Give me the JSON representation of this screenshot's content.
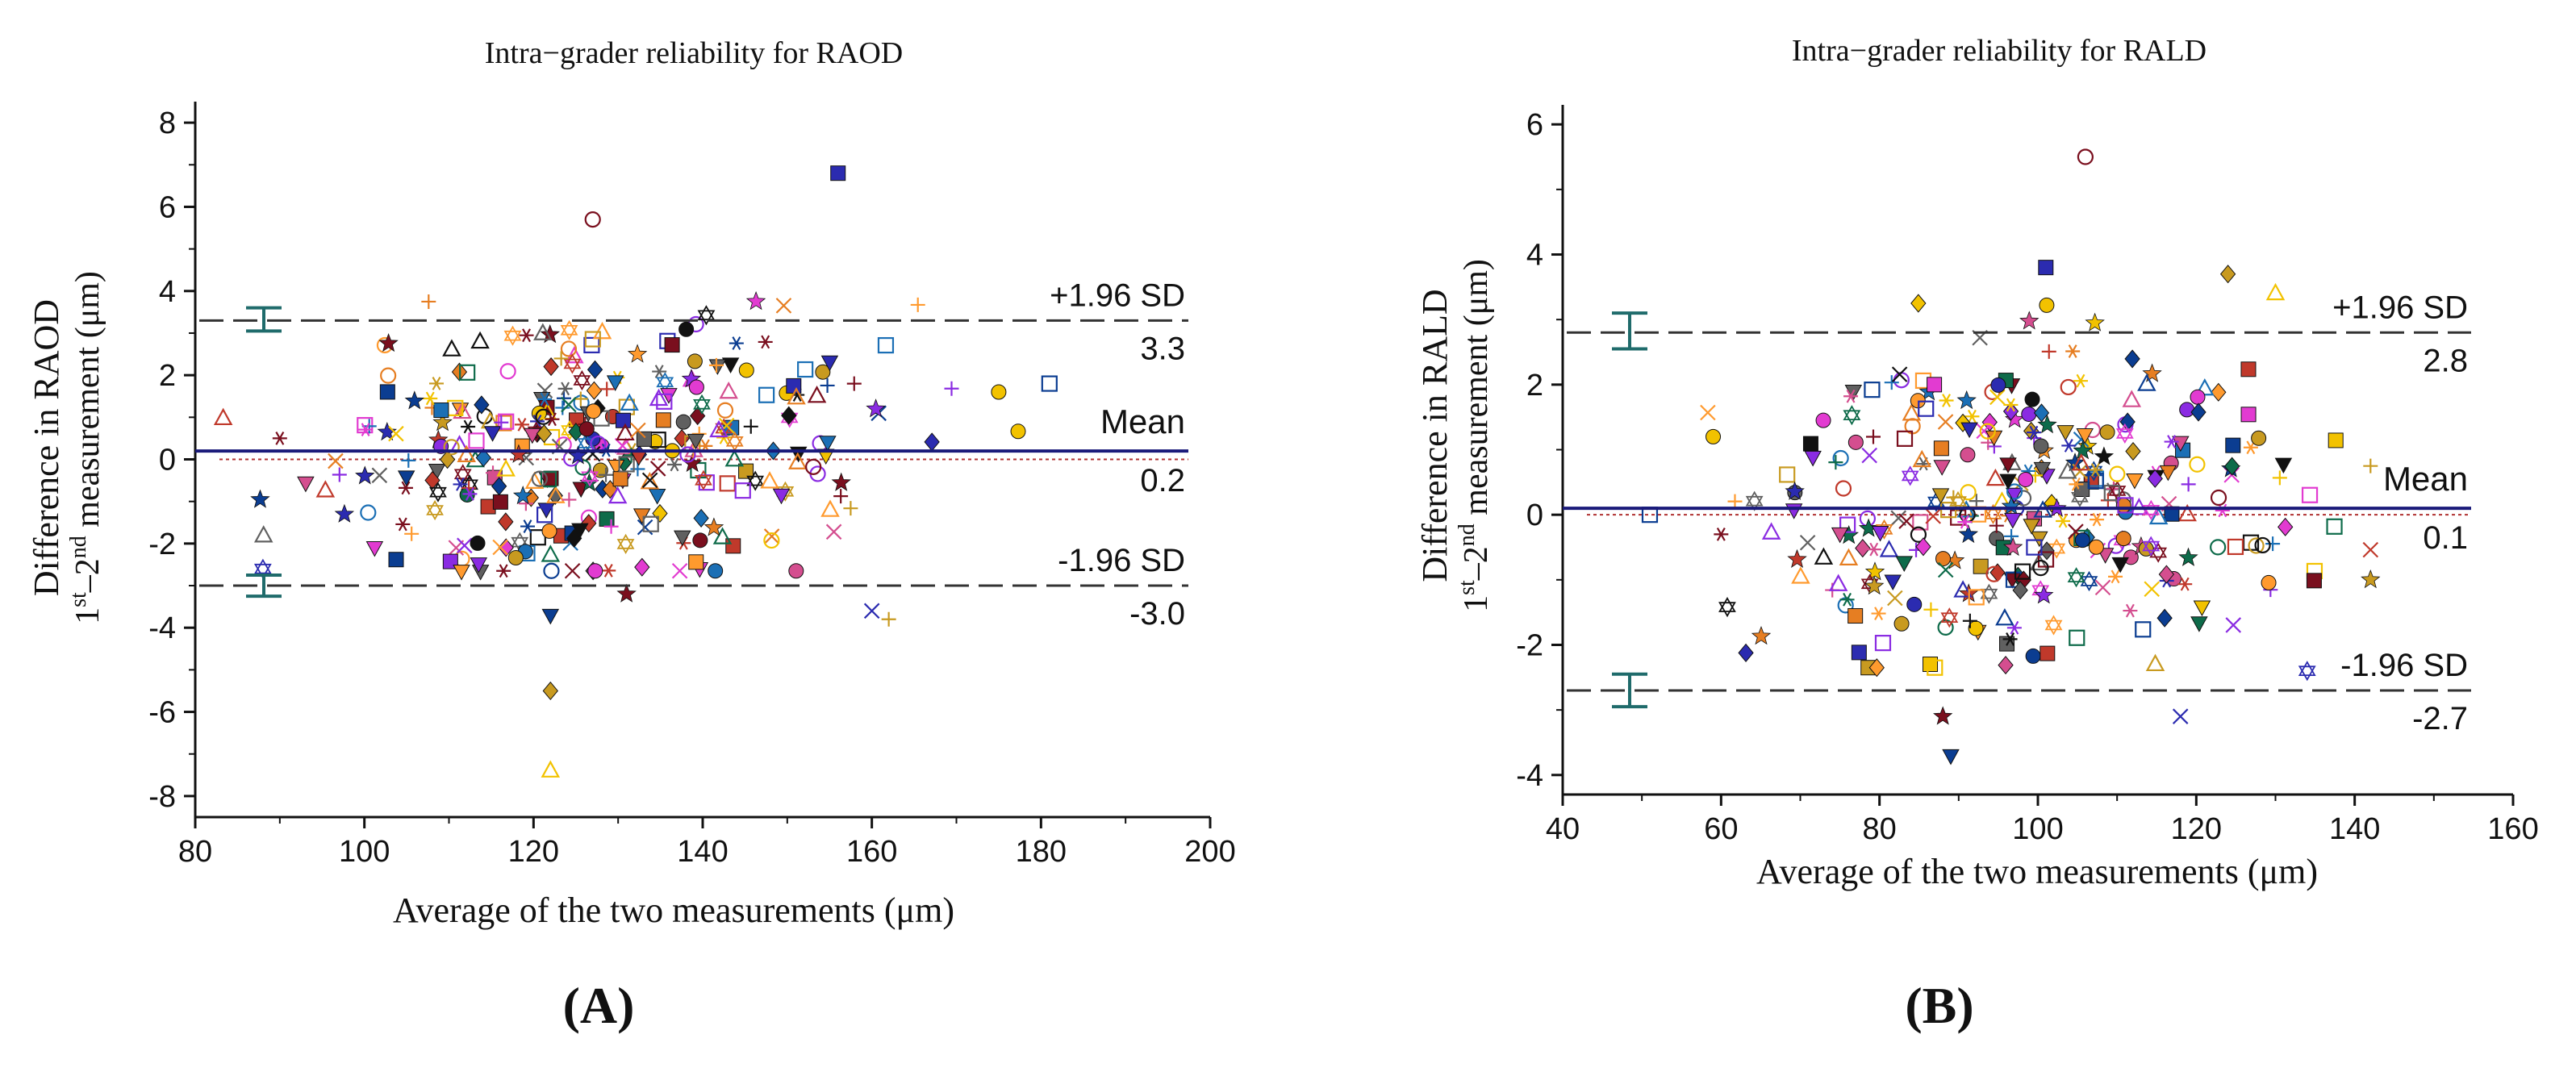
{
  "colors": {
    "axis": "#111111",
    "mean_line": "#1a1a7a",
    "limit_line": "#333333",
    "zero_line": "#b03030",
    "ci_bar": "#1f6b6b",
    "markers": [
      "#111111",
      "#7a0f1e",
      "#ff9a2e",
      "#e23bd1",
      "#2b2bb0",
      "#0e6b4a",
      "#d44e8f",
      "#c89a20",
      "#1b6fb5",
      "#8a2be2",
      "#f2c200",
      "#c0392b",
      "#606060",
      "#0b3d91",
      "#e67e22"
    ]
  },
  "marker_shapes": [
    "circle-open",
    "square-filled",
    "diamond-filled",
    "triangle-open",
    "triangle-down-filled",
    "star",
    "cross",
    "plus",
    "circle-filled",
    "square-open",
    "asterisk",
    "hexagram"
  ],
  "chart_data": [
    {
      "type": "scatter",
      "panel_label": "(A)",
      "title": "Intra−grader reliability for RAOD",
      "xlabel": "Average of the two measurements (μm)",
      "ylabel_line1": "Difference in RAOD",
      "ylabel_line2": "1st–2nd measurement (μm)",
      "xlim": [
        80,
        200
      ],
      "ylim": [
        -8.5,
        8.5
      ],
      "xticks": [
        80,
        100,
        120,
        140,
        160,
        180,
        200
      ],
      "yticks": [
        -8,
        -6,
        -4,
        -2,
        0,
        2,
        4,
        6,
        8
      ],
      "mean": 0.2,
      "upper_loa": 3.3,
      "lower_loa": -3.0,
      "mean_label": "Mean",
      "mean_value_label": "0.2",
      "upper_label": "+1.96 SD",
      "upper_value_label": "3.3",
      "lower_label": "-1.96 SD",
      "lower_value_label": "-3.0",
      "upper_ci": [
        3.05,
        3.6
      ],
      "lower_ci": [
        -3.25,
        -2.75
      ],
      "x_range_data": [
        82,
        182
      ],
      "n_points": 330,
      "seed": 7,
      "cluster_center": 128,
      "cluster_spread": 16,
      "y_spread": 1.5,
      "highlighted_points": [
        {
          "x": 127,
          "y": 5.7
        },
        {
          "x": 156,
          "y": 6.8
        },
        {
          "x": 122,
          "y": -5.5
        },
        {
          "x": 122,
          "y": -7.4
        },
        {
          "x": 122,
          "y": -3.7
        },
        {
          "x": 131,
          "y": -3.2
        },
        {
          "x": 160,
          "y": -3.6
        },
        {
          "x": 162,
          "y": -3.8
        },
        {
          "x": 175,
          "y": 1.6
        },
        {
          "x": 181,
          "y": 1.8
        },
        {
          "x": 90,
          "y": 0.5
        },
        {
          "x": 88,
          "y": -2.6
        }
      ]
    },
    {
      "type": "scatter",
      "panel_label": "(B)",
      "title": "Intra−grader reliability for RALD",
      "xlabel": "Average of the two measurements (μm)",
      "ylabel_line1": "Difference in RALD",
      "ylabel_line2": "1st–2nd measurement (μm)",
      "xlim": [
        40,
        160
      ],
      "ylim": [
        -4.3,
        6.3
      ],
      "xticks": [
        40,
        60,
        80,
        100,
        120,
        140,
        160
      ],
      "yticks": [
        -4,
        -2,
        0,
        2,
        4,
        6
      ],
      "mean": 0.1,
      "upper_loa": 2.8,
      "lower_loa": -2.7,
      "mean_label": "Mean",
      "mean_value_label": "0.1",
      "upper_label": "+1.96 SD",
      "upper_value_label": "2.8",
      "lower_label": "-1.96 SD",
      "lower_value_label": "-2.7",
      "upper_ci": [
        2.55,
        3.1
      ],
      "lower_ci": [
        -2.95,
        -2.45
      ],
      "x_range_data": [
        58,
        142
      ],
      "n_points": 330,
      "seed": 19,
      "cluster_center": 100,
      "cluster_spread": 16,
      "y_spread": 1.25,
      "highlighted_points": [
        {
          "x": 106,
          "y": 5.5
        },
        {
          "x": 101,
          "y": 3.8
        },
        {
          "x": 124,
          "y": 3.7
        },
        {
          "x": 130,
          "y": 3.4
        },
        {
          "x": 89,
          "y": -3.7
        },
        {
          "x": 88,
          "y": -3.1
        },
        {
          "x": 118,
          "y": -3.1
        },
        {
          "x": 142,
          "y": 0.75
        },
        {
          "x": 59,
          "y": 1.2
        },
        {
          "x": 51,
          "y": 0.0
        },
        {
          "x": 60,
          "y": -0.3
        },
        {
          "x": 134,
          "y": -2.4
        }
      ]
    }
  ]
}
